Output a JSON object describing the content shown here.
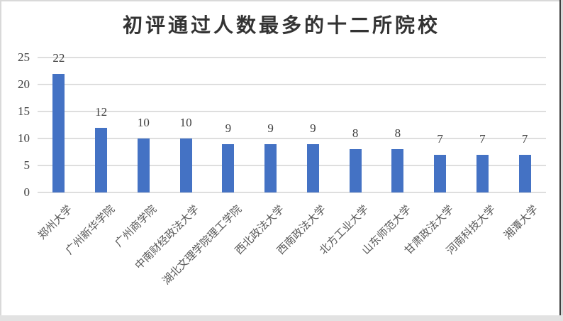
{
  "chart_data": {
    "type": "bar",
    "title": "初评通过人数最多的十二所院校",
    "categories": [
      "郑州大学",
      "广州新华学院",
      "广州商学院",
      "中南财经政法大学",
      "湖北文理学院理工学院",
      "西北政法大学",
      "西南政法大学",
      "北方工业大学",
      "山东师范大学",
      "甘肃政法大学",
      "河南科技大学",
      "湘潭大学"
    ],
    "values": [
      22,
      12,
      10,
      10,
      9,
      9,
      9,
      8,
      8,
      7,
      7,
      7
    ],
    "data_labels": [
      "22",
      "12",
      "10",
      "10",
      "9",
      "9",
      "9",
      "8",
      "8",
      "7",
      "7",
      "7"
    ],
    "yticks": [
      0,
      5,
      10,
      15,
      20,
      25
    ],
    "ylim": [
      0,
      25
    ],
    "xlabel": "",
    "ylabel": "",
    "legend": "none",
    "grid": "horizontal",
    "category_label_rotation_deg": -45,
    "colors": {
      "bar": "#4472C4",
      "gridline": "#dedede",
      "y_tick_label": "#404040",
      "value_label": "#404040",
      "category_label": "#595959",
      "title": "#333333"
    }
  }
}
